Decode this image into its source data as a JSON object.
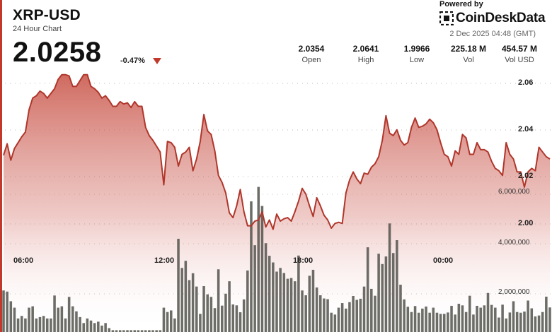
{
  "header": {
    "title": "XRP-USD",
    "subtitle": "24 Hour Chart",
    "price": "2.0258",
    "change": "-0.47%"
  },
  "brand": {
    "powered_by": "Powered by",
    "name": "CoinDeskData",
    "timestamp": "2 Dec 2025 04:48 (GMT)",
    "icon": "coindesk-logo-icon"
  },
  "stats": [
    {
      "value": "2.0354",
      "label": "Open"
    },
    {
      "value": "2.0641",
      "label": "High"
    },
    {
      "value": "1.9966",
      "label": "Low"
    },
    {
      "value": "225.18 M",
      "label": "Vol"
    },
    {
      "value": "454.57 M",
      "label": "Vol USD"
    }
  ],
  "colors": {
    "accent": "#c0392b",
    "price_line": "#b0362b",
    "area_top": "#c0392b",
    "volume_bar": "#4d4d47"
  },
  "chart_data": {
    "type": "area",
    "title": "XRP-USD",
    "x_tick_labels": [
      "06:00",
      "12:00",
      "18:00",
      "00:00"
    ],
    "y_tick_labels": [
      "2.06",
      "2.04",
      "2.02",
      "2.00"
    ],
    "ylim": [
      1.9955,
      2.068
    ],
    "grid": true,
    "series": [
      {
        "name": "Price",
        "values": [
          2.0293,
          2.0342,
          2.0272,
          2.0322,
          2.0347,
          2.0372,
          2.0392,
          2.0487,
          2.0537,
          2.0547,
          2.0567,
          2.0557,
          2.0537,
          2.0557,
          2.0577,
          2.0617,
          2.0637,
          2.0637,
          2.0632,
          2.0587,
          2.0587,
          2.0612,
          2.0637,
          2.0637,
          2.0587,
          2.0577,
          2.0562,
          2.0537,
          2.0547,
          2.0527,
          2.0502,
          2.0502,
          2.0522,
          2.0512,
          2.0517,
          2.0497,
          2.0522,
          2.0502,
          2.0502,
          2.0412,
          2.0377,
          2.0357,
          2.0332,
          2.0307,
          2.0167,
          2.0352,
          2.0347,
          2.0327,
          2.0247,
          2.0297,
          2.0307,
          2.0327,
          2.0227,
          2.0277,
          2.0352,
          2.0467,
          2.0397,
          2.0382,
          2.0312,
          2.0207,
          2.0177,
          2.0132,
          2.0047,
          2.0027,
          2.0077,
          2.0147,
          2.0052,
          1.9992,
          1.9992,
          2.0012,
          2.0017,
          2.0052,
          1.9987,
          2.0017,
          1.9977,
          2.0042,
          2.0012,
          2.0022,
          2.0027,
          2.0012,
          2.0052,
          2.0097,
          2.0152,
          2.0127,
          2.0077,
          2.0032,
          2.0112,
          2.0077,
          2.0037,
          2.0017,
          1.9982,
          2.0002,
          2.0007,
          2.0002,
          2.0132,
          2.0187,
          2.0222,
          2.0192,
          2.0172,
          2.0217,
          2.0212,
          2.0242,
          2.0257,
          2.0287,
          2.0357,
          2.0462,
          2.0387,
          2.0377,
          2.0402,
          2.0357,
          2.0337,
          2.0347,
          2.0412,
          2.0452,
          2.0412,
          2.0417,
          2.0427,
          2.0447,
          2.0432,
          2.0402,
          2.0347,
          2.0297,
          2.0287,
          2.0247,
          2.0312,
          2.0297,
          2.0382,
          2.0367,
          2.0297,
          2.0297,
          2.0347,
          2.0317,
          2.0317,
          2.0307,
          2.0267,
          2.0237,
          2.0227,
          2.0207,
          2.0347,
          2.0297,
          2.0277,
          2.0222,
          2.0222,
          2.0157,
          2.0222,
          2.0237,
          2.0227,
          2.0327,
          2.0307,
          2.0287,
          2.0277
        ]
      },
      {
        "name": "Volume",
        "y_tick_labels": [
          "6,000,000",
          "4,000,000",
          "2,000,000"
        ],
        "ylim": [
          0,
          7100000
        ],
        "values": [
          1810000,
          1760000,
          1340000,
          1060000,
          590000,
          700000,
          590000,
          1060000,
          1120000,
          590000,
          650000,
          700000,
          590000,
          590000,
          1590000,
          1060000,
          1120000,
          590000,
          1530000,
          1120000,
          900000,
          650000,
          390000,
          590000,
          500000,
          390000,
          450000,
          280000,
          390000,
          170000,
          80000,
          80000,
          80000,
          80000,
          80000,
          80000,
          80000,
          80000,
          80000,
          80000,
          80000,
          80000,
          80000,
          80000,
          1060000,
          870000,
          940000,
          590000,
          4060000,
          2790000,
          3100000,
          2260000,
          2560000,
          1980000,
          790000,
          2000000,
          1640000,
          1530000,
          1040000,
          2730000,
          1150000,
          1670000,
          2210000,
          1200000,
          1160000,
          860000,
          1420000,
          2680000,
          5690000,
          3780000,
          6320000,
          5490000,
          3870000,
          3320000,
          3030000,
          2630000,
          2790000,
          2570000,
          2320000,
          2350000,
          2210000,
          3330000,
          1810000,
          1600000,
          2450000,
          2710000,
          1940000,
          1600000,
          1460000,
          1430000,
          840000,
          760000,
          1060000,
          1260000,
          1020000,
          1300000,
          1570000,
          1400000,
          1450000,
          1980000,
          3690000,
          1880000,
          1580000,
          3410000,
          2960000,
          3290000,
          4730000,
          3440000,
          4000000,
          2060000,
          1420000,
          1100000,
          870000,
          1130000,
          840000,
          1020000,
          1110000,
          840000,
          1060000,
          840000,
          790000,
          790000,
          850000,
          1140000,
          760000,
          1230000,
          1160000,
          870000,
          1580000,
          760000,
          1140000,
          1060000,
          1160000,
          1700000,
          1180000,
          1060000,
          630000,
          1190000,
          590000,
          850000,
          1340000,
          870000,
          840000,
          890000,
          1370000,
          1030000,
          680000,
          720000,
          870000,
          1540000,
          1070000,
          520000,
          590000,
          870000,
          1210000
        ]
      }
    ]
  }
}
